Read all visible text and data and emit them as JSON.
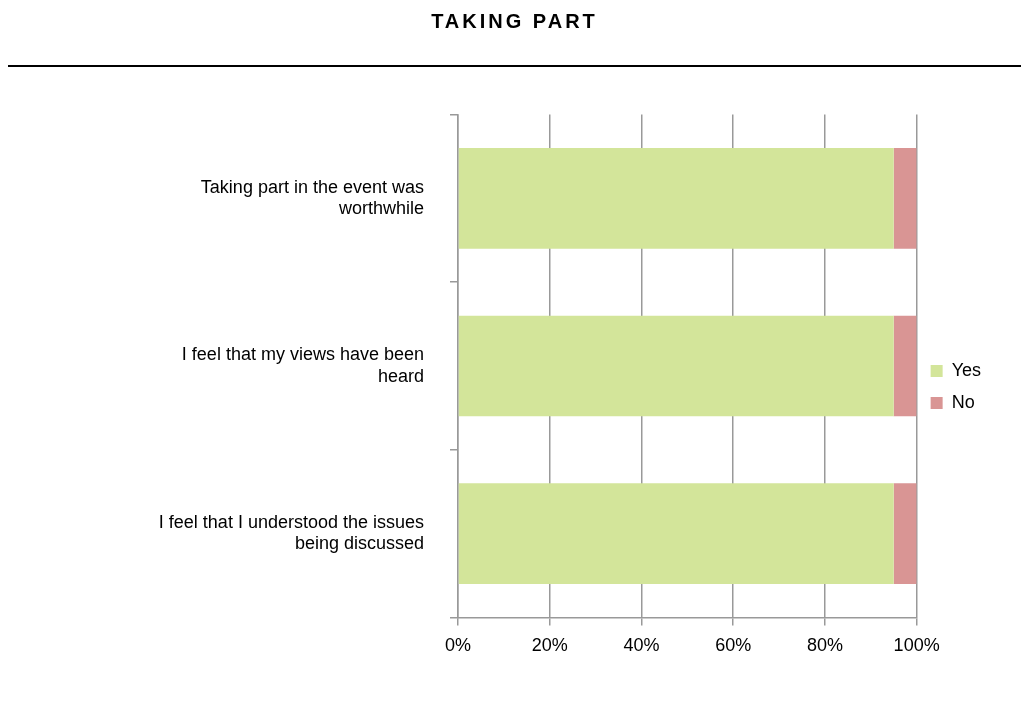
{
  "chart_data": {
    "type": "bar",
    "title": "TAKING PART",
    "orientation": "horizontal",
    "stacked": true,
    "categories": [
      "Taking part in the event was worthwhile",
      "I feel that my views have been heard",
      "I feel that I understood the issues being discussed"
    ],
    "series": [
      {
        "name": "Yes",
        "color": "#d3e59a",
        "values": [
          95,
          95,
          95
        ]
      },
      {
        "name": "No",
        "color": "#d99594",
        "values": [
          5,
          5,
          5
        ]
      }
    ],
    "xlim": [
      0,
      100
    ],
    "xticks": [
      {
        "value": 0,
        "label": "0%"
      },
      {
        "value": 20,
        "label": "20%"
      },
      {
        "value": 40,
        "label": "40%"
      },
      {
        "value": 60,
        "label": "60%"
      },
      {
        "value": 80,
        "label": "80%"
      },
      {
        "value": 100,
        "label": "100%"
      }
    ],
    "grid": "x",
    "legend": "right"
  }
}
